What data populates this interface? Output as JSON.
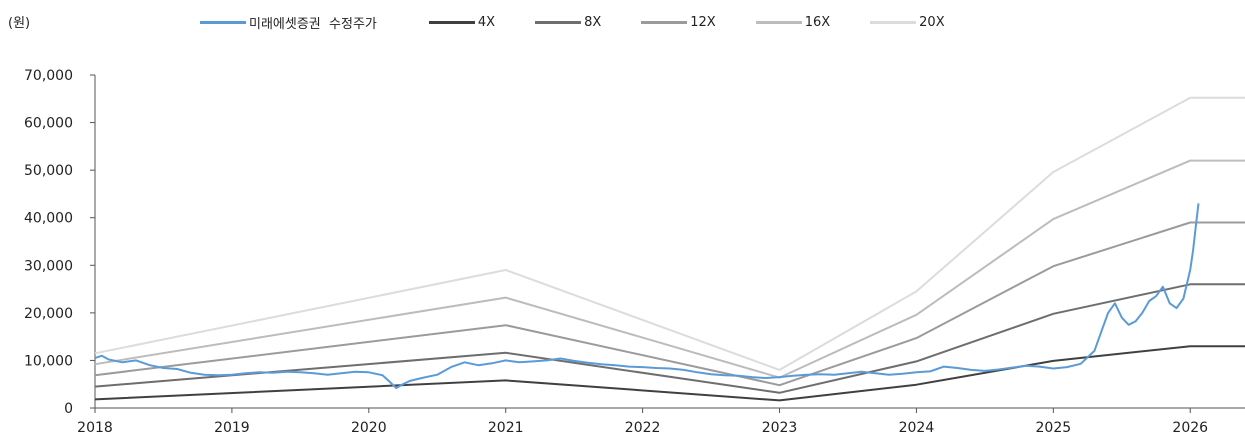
{
  "unit_label": "(원)",
  "chart_data": {
    "type": "line",
    "title": "",
    "xlabel": "",
    "ylabel": "(원)",
    "xlim": [
      2018.0,
      2026.4
    ],
    "ylim": [
      0,
      70000
    ],
    "yticks": [
      "0",
      "10,000",
      "20,000",
      "30,000",
      "40,000",
      "50,000",
      "60,000",
      "70,000"
    ],
    "xticks": [
      "2018",
      "2019",
      "2020",
      "2021",
      "2022",
      "2023",
      "2024",
      "2025",
      "2026"
    ],
    "grid": false,
    "legend_position": "top",
    "series": [
      {
        "name": "미래에셋증권  수정주가",
        "color": "#5b9bd5",
        "points": [
          [
            2018.0,
            10500
          ],
          [
            2018.05,
            11000
          ],
          [
            2018.1,
            10200
          ],
          [
            2018.2,
            9600
          ],
          [
            2018.3,
            10000
          ],
          [
            2018.4,
            9000
          ],
          [
            2018.5,
            8400
          ],
          [
            2018.6,
            8200
          ],
          [
            2018.7,
            7400
          ],
          [
            2018.8,
            7000
          ],
          [
            2018.9,
            6900
          ],
          [
            2019.0,
            7000
          ],
          [
            2019.1,
            7300
          ],
          [
            2019.2,
            7500
          ],
          [
            2019.3,
            7400
          ],
          [
            2019.4,
            7600
          ],
          [
            2019.5,
            7500
          ],
          [
            2019.6,
            7300
          ],
          [
            2019.7,
            7000
          ],
          [
            2019.8,
            7300
          ],
          [
            2019.9,
            7600
          ],
          [
            2020.0,
            7500
          ],
          [
            2020.1,
            6900
          ],
          [
            2020.15,
            5600
          ],
          [
            2020.2,
            4200
          ],
          [
            2020.25,
            5000
          ],
          [
            2020.3,
            5700
          ],
          [
            2020.4,
            6400
          ],
          [
            2020.5,
            7000
          ],
          [
            2020.6,
            8600
          ],
          [
            2020.7,
            9600
          ],
          [
            2020.8,
            9000
          ],
          [
            2020.9,
            9400
          ],
          [
            2021.0,
            10000
          ],
          [
            2021.1,
            9600
          ],
          [
            2021.2,
            9800
          ],
          [
            2021.3,
            10000
          ],
          [
            2021.4,
            10400
          ],
          [
            2021.5,
            9900
          ],
          [
            2021.6,
            9500
          ],
          [
            2021.7,
            9200
          ],
          [
            2021.8,
            9000
          ],
          [
            2021.9,
            8700
          ],
          [
            2022.0,
            8600
          ],
          [
            2022.1,
            8400
          ],
          [
            2022.2,
            8300
          ],
          [
            2022.3,
            8000
          ],
          [
            2022.4,
            7500
          ],
          [
            2022.5,
            7100
          ],
          [
            2022.6,
            6900
          ],
          [
            2022.7,
            6800
          ],
          [
            2022.8,
            6500
          ],
          [
            2022.9,
            6300
          ],
          [
            2023.0,
            6500
          ],
          [
            2023.1,
            6800
          ],
          [
            2023.2,
            7000
          ],
          [
            2023.3,
            7100
          ],
          [
            2023.4,
            7000
          ],
          [
            2023.5,
            7300
          ],
          [
            2023.6,
            7600
          ],
          [
            2023.7,
            7300
          ],
          [
            2023.8,
            7000
          ],
          [
            2023.9,
            7200
          ],
          [
            2024.0,
            7500
          ],
          [
            2024.1,
            7700
          ],
          [
            2024.15,
            8200
          ],
          [
            2024.2,
            8700
          ],
          [
            2024.3,
            8400
          ],
          [
            2024.4,
            8000
          ],
          [
            2024.5,
            7800
          ],
          [
            2024.6,
            8100
          ],
          [
            2024.7,
            8500
          ],
          [
            2024.8,
            8900
          ],
          [
            2024.9,
            8700
          ],
          [
            2025.0,
            8300
          ],
          [
            2025.1,
            8600
          ],
          [
            2025.2,
            9300
          ],
          [
            2025.3,
            12000
          ],
          [
            2025.35,
            16000
          ],
          [
            2025.4,
            20000
          ],
          [
            2025.45,
            22000
          ],
          [
            2025.5,
            19000
          ],
          [
            2025.55,
            17500
          ],
          [
            2025.6,
            18200
          ],
          [
            2025.65,
            20000
          ],
          [
            2025.7,
            22500
          ],
          [
            2025.75,
            23500
          ],
          [
            2025.8,
            25500
          ],
          [
            2025.85,
            22000
          ],
          [
            2025.9,
            21000
          ],
          [
            2025.95,
            23000
          ],
          [
            2026.0,
            29000
          ],
          [
            2026.02,
            33000
          ],
          [
            2026.04,
            38000
          ],
          [
            2026.06,
            43000
          ]
        ]
      },
      {
        "name": "4X",
        "color": "#404040",
        "points": [
          [
            2018.0,
            1800
          ],
          [
            2021.0,
            5800
          ],
          [
            2023.0,
            1600
          ],
          [
            2024.0,
            4900
          ],
          [
            2025.0,
            9900
          ],
          [
            2026.0,
            13000
          ],
          [
            2026.4,
            13000
          ]
        ]
      },
      {
        "name": "8X",
        "color": "#6e6e6e",
        "points": [
          [
            2018.0,
            4500
          ],
          [
            2021.0,
            11600
          ],
          [
            2023.0,
            3200
          ],
          [
            2024.0,
            9800
          ],
          [
            2025.0,
            19800
          ],
          [
            2026.0,
            26000
          ],
          [
            2026.4,
            26000
          ]
        ]
      },
      {
        "name": "12X",
        "color": "#9b9b9b",
        "points": [
          [
            2018.0,
            6900
          ],
          [
            2021.0,
            17400
          ],
          [
            2023.0,
            4800
          ],
          [
            2024.0,
            14700
          ],
          [
            2025.0,
            29800
          ],
          [
            2026.0,
            39000
          ],
          [
            2026.4,
            39000
          ]
        ]
      },
      {
        "name": "16X",
        "color": "#bcbcbc",
        "points": [
          [
            2018.0,
            9200
          ],
          [
            2021.0,
            23200
          ],
          [
            2023.0,
            6400
          ],
          [
            2024.0,
            19600
          ],
          [
            2025.0,
            39700
          ],
          [
            2026.0,
            52000
          ],
          [
            2026.4,
            52000
          ]
        ]
      },
      {
        "name": "20X",
        "color": "#dcdcdc",
        "points": [
          [
            2018.0,
            11500
          ],
          [
            2021.0,
            29000
          ],
          [
            2023.0,
            8000
          ],
          [
            2024.0,
            24500
          ],
          [
            2025.0,
            49600
          ],
          [
            2026.0,
            65200
          ],
          [
            2026.4,
            65200
          ]
        ]
      }
    ]
  }
}
